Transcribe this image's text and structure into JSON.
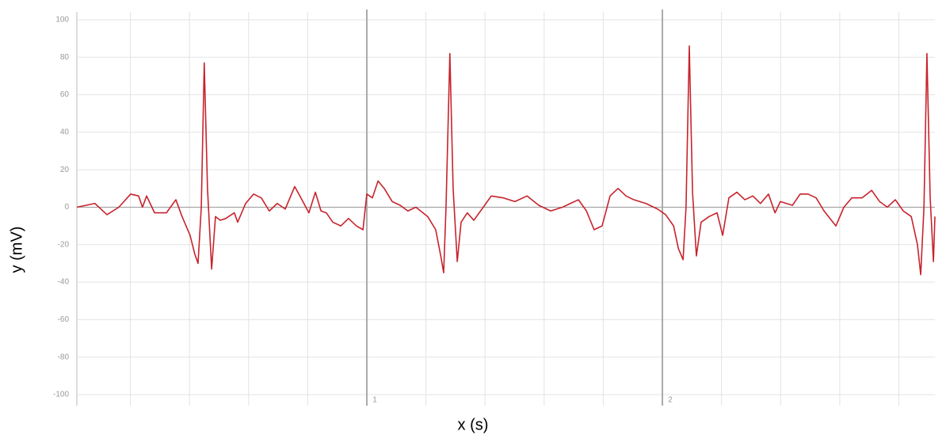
{
  "chart_data": {
    "type": "line",
    "x_label": "x (s)",
    "y_label": "y (mV)",
    "color": "#c8232c",
    "xlim": [
      0.019,
      2.922
    ],
    "xticks": [
      1,
      2
    ],
    "x_grid": [
      0.2,
      0.4,
      0.6,
      0.8,
      1.2,
      1.4,
      1.6,
      1.8,
      2.2,
      2.4,
      2.6,
      2.8
    ],
    "ylim": [
      -100,
      100
    ],
    "yticks": [
      -100,
      -80,
      -60,
      -40,
      -20,
      0,
      20,
      40,
      60,
      80,
      100
    ],
    "grid": true,
    "x": [
      0.019,
      0.08,
      0.121,
      0.161,
      0.201,
      0.228,
      0.241,
      0.255,
      0.282,
      0.322,
      0.354,
      0.375,
      0.402,
      0.418,
      0.429,
      0.44,
      0.45,
      0.461,
      0.475,
      0.488,
      0.504,
      0.523,
      0.542,
      0.552,
      0.563,
      0.59,
      0.617,
      0.643,
      0.67,
      0.697,
      0.724,
      0.756,
      0.777,
      0.804,
      0.826,
      0.845,
      0.863,
      0.885,
      0.912,
      0.938,
      0.965,
      0.987,
      1.0,
      1.019,
      1.038,
      1.059,
      1.086,
      1.113,
      1.139,
      1.166,
      1.206,
      1.233,
      1.249,
      1.26,
      1.268,
      1.281,
      1.292,
      1.306,
      1.319,
      1.34,
      1.362,
      1.394,
      1.421,
      1.461,
      1.501,
      1.542,
      1.582,
      1.622,
      1.662,
      1.689,
      1.716,
      1.743,
      1.769,
      1.796,
      1.823,
      1.85,
      1.877,
      1.903,
      1.944,
      1.984,
      2.011,
      2.038,
      2.054,
      2.07,
      2.08,
      2.091,
      2.102,
      2.115,
      2.131,
      2.158,
      2.185,
      2.204,
      2.225,
      2.252,
      2.279,
      2.306,
      2.332,
      2.359,
      2.381,
      2.399,
      2.44,
      2.466,
      2.493,
      2.52,
      2.547,
      2.587,
      2.614,
      2.641,
      2.676,
      2.708,
      2.735,
      2.761,
      2.788,
      2.815,
      2.842,
      2.863,
      2.874,
      2.885,
      2.895,
      2.906,
      2.917,
      2.922
    ],
    "values": [
      0,
      2,
      -4,
      0,
      7,
      6,
      0,
      6,
      -3,
      -3,
      4,
      -5,
      -15,
      -25,
      -30,
      0,
      77,
      10,
      -33,
      -5,
      -7,
      -6,
      -4,
      -3,
      -8,
      2,
      7,
      5,
      -2,
      2,
      -1,
      11,
      5,
      -3,
      8,
      -2,
      -3,
      -8,
      -10,
      -6,
      -10,
      -12,
      7,
      5,
      14,
      10,
      3,
      1,
      -2,
      0,
      -5,
      -12,
      -25,
      -35,
      0,
      82,
      10,
      -29,
      -8,
      -3,
      -7,
      0,
      6,
      5,
      3,
      6,
      1,
      -2,
      0,
      2,
      4,
      -2,
      -12,
      -10,
      6,
      10,
      6,
      4,
      2,
      -1,
      -4,
      -10,
      -22,
      -28,
      0,
      86,
      8,
      -26,
      -8,
      -5,
      -3,
      -15,
      5,
      8,
      4,
      6,
      2,
      7,
      -3,
      3,
      1,
      7,
      7,
      5,
      -2,
      -10,
      0,
      5,
      5,
      9,
      3,
      0,
      4,
      -2,
      -5,
      -20,
      -36,
      0,
      82,
      5,
      -29,
      -5
    ]
  }
}
